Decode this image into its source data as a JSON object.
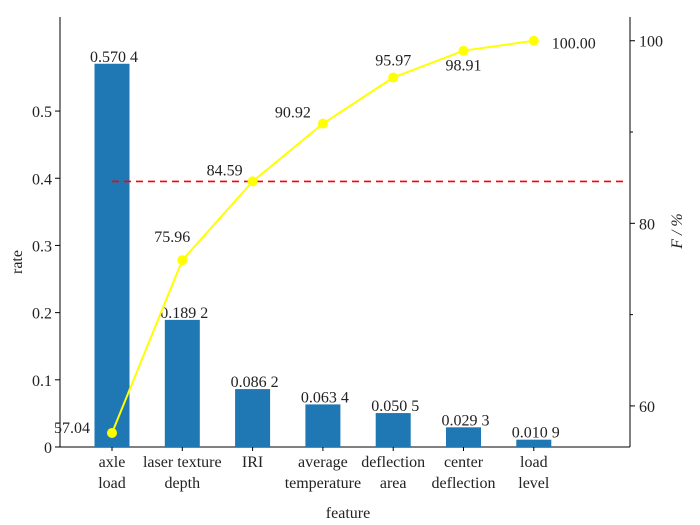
{
  "chart_data": {
    "type": "bar",
    "xlabel": "feature",
    "ylabel": "rate",
    "y2label": "F / %",
    "ylim": [
      0,
      0.64
    ],
    "y2lim": [
      55.5,
      102.6
    ],
    "yticks": [
      "0",
      "0.1",
      "0.2",
      "0.3",
      "0.4",
      "0.5"
    ],
    "y2ticks": [
      "60",
      "80",
      "100"
    ],
    "categories": [
      [
        "axle",
        "load"
      ],
      [
        "laser texture",
        "depth"
      ],
      [
        "IRI"
      ],
      [
        "average",
        "temperature"
      ],
      [
        "deflection",
        "area"
      ],
      [
        "center",
        "deflection"
      ],
      [
        "load",
        "level"
      ]
    ],
    "bar_values": [
      0.5704,
      0.1892,
      0.0862,
      0.0634,
      0.0505,
      0.0293,
      0.0109
    ],
    "bar_labels": [
      "0.570 4",
      "0.189 2",
      "0.086 2",
      "0.063 4",
      "0.050 5",
      "0.029 3",
      "0.010 9"
    ],
    "cumulative_values": [
      57.04,
      75.96,
      84.59,
      90.92,
      95.97,
      98.91,
      100.0
    ],
    "cumulative_labels": [
      "57.04",
      "75.96",
      "84.59",
      "90.92",
      "95.97",
      "98.91",
      "100.00"
    ],
    "reference_line": {
      "y2": 84.59,
      "style": "dashed"
    },
    "colors": {
      "bar": "#1f77b4",
      "line": "#ffff00",
      "reference": "#ff0000"
    }
  }
}
